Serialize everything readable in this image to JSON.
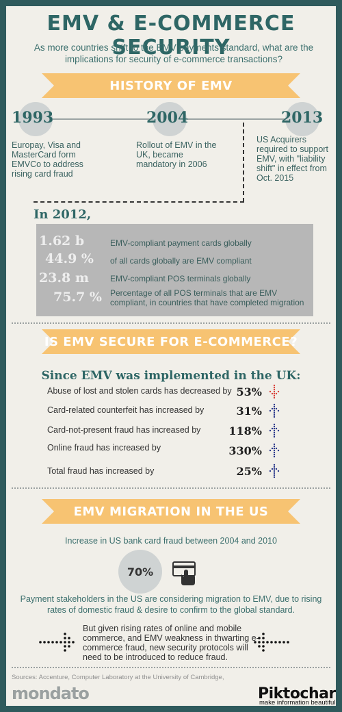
{
  "header": {
    "title": "EMV & E-COMMERCE SECURITY",
    "subtitle": "As more countries shift to the EMV payments standard, what are the implications for security of e-commerce transactions?"
  },
  "history": {
    "banner": "HISTORY OF EMV",
    "events": [
      {
        "year": "1993",
        "text": "Europay, Visa and MasterCard form EMVCo to address rising card fraud"
      },
      {
        "year": "2004",
        "text": "Rollout of EMV in the UK, became mandatory in 2006"
      },
      {
        "year": "2013",
        "text": "US Acquirers required to support EMV, with \"liability shift\" in effect from Oct. 2015"
      }
    ]
  },
  "stats2012": {
    "heading": "In 2012,",
    "rows": [
      {
        "value": "1.62 b",
        "desc": "EMV-compliant payment cards globally"
      },
      {
        "value": "44.9 %",
        "desc": "of all cards globally are EMV compliant"
      },
      {
        "value": "23.8 m",
        "desc": "EMV-compliant POS terminals globally"
      },
      {
        "value": "75.7 %",
        "desc": "Percentage of all POS terminals that are EMV compliant, in countries that have completed migration"
      }
    ]
  },
  "secure": {
    "banner": "IS EMV SECURE FOR E-COMMERCE?",
    "heading": "Since EMV was implemented in the UK:",
    "rows": [
      {
        "label": "Abuse of lost and stolen cards has decreased by",
        "pct": "53%",
        "icon": "arrow-down-icon",
        "color": "#d9413a"
      },
      {
        "label": "Card-related counterfeit has increased by",
        "pct": "31%",
        "icon": "arrow-up-icon",
        "color": "#2b3a8c"
      },
      {
        "label": "Card-not-present fraud has increased by",
        "pct": "118%",
        "icon": "arrow-up-icon",
        "color": "#2b3a8c"
      },
      {
        "label": "Online fraud has increased by",
        "pct": "330%",
        "icon": "arrow-up-icon",
        "color": "#2b3a8c"
      },
      {
        "label": "Total fraud has increased by",
        "pct": "25%",
        "icon": "arrow-up-icon",
        "color": "#2b3a8c"
      }
    ]
  },
  "us": {
    "banner": "EMV MIGRATION IN THE US",
    "increase_label": "Increase in US bank card fraud between 2004 and 2010",
    "increase_value": "70%",
    "stakeholders": "Payment stakeholders in the US are considering migration to EMV, due to rising rates of domestic fraud & desire to confirm to the global standard.",
    "conclusion": "But given rising rates of online and mobile commerce, and EMV weakness in thwarting e-commerce fraud, new security protocols will need to be introduced to reduce fraud."
  },
  "footer": {
    "sources": "Sources: Accenture, Computer Laboratory at the University of Cambridge,",
    "mondato": "mondato",
    "piktochart": "Piktochart",
    "tagline": "make information beautiful"
  },
  "colors": {
    "frame": "#2f5a5c",
    "background": "#f1efe9",
    "teal": "#2e6665",
    "banner": "#f7c372",
    "stat_box": "#b7b7b7",
    "arrow_down": "#d9413a",
    "arrow_up": "#2b3a8c"
  }
}
